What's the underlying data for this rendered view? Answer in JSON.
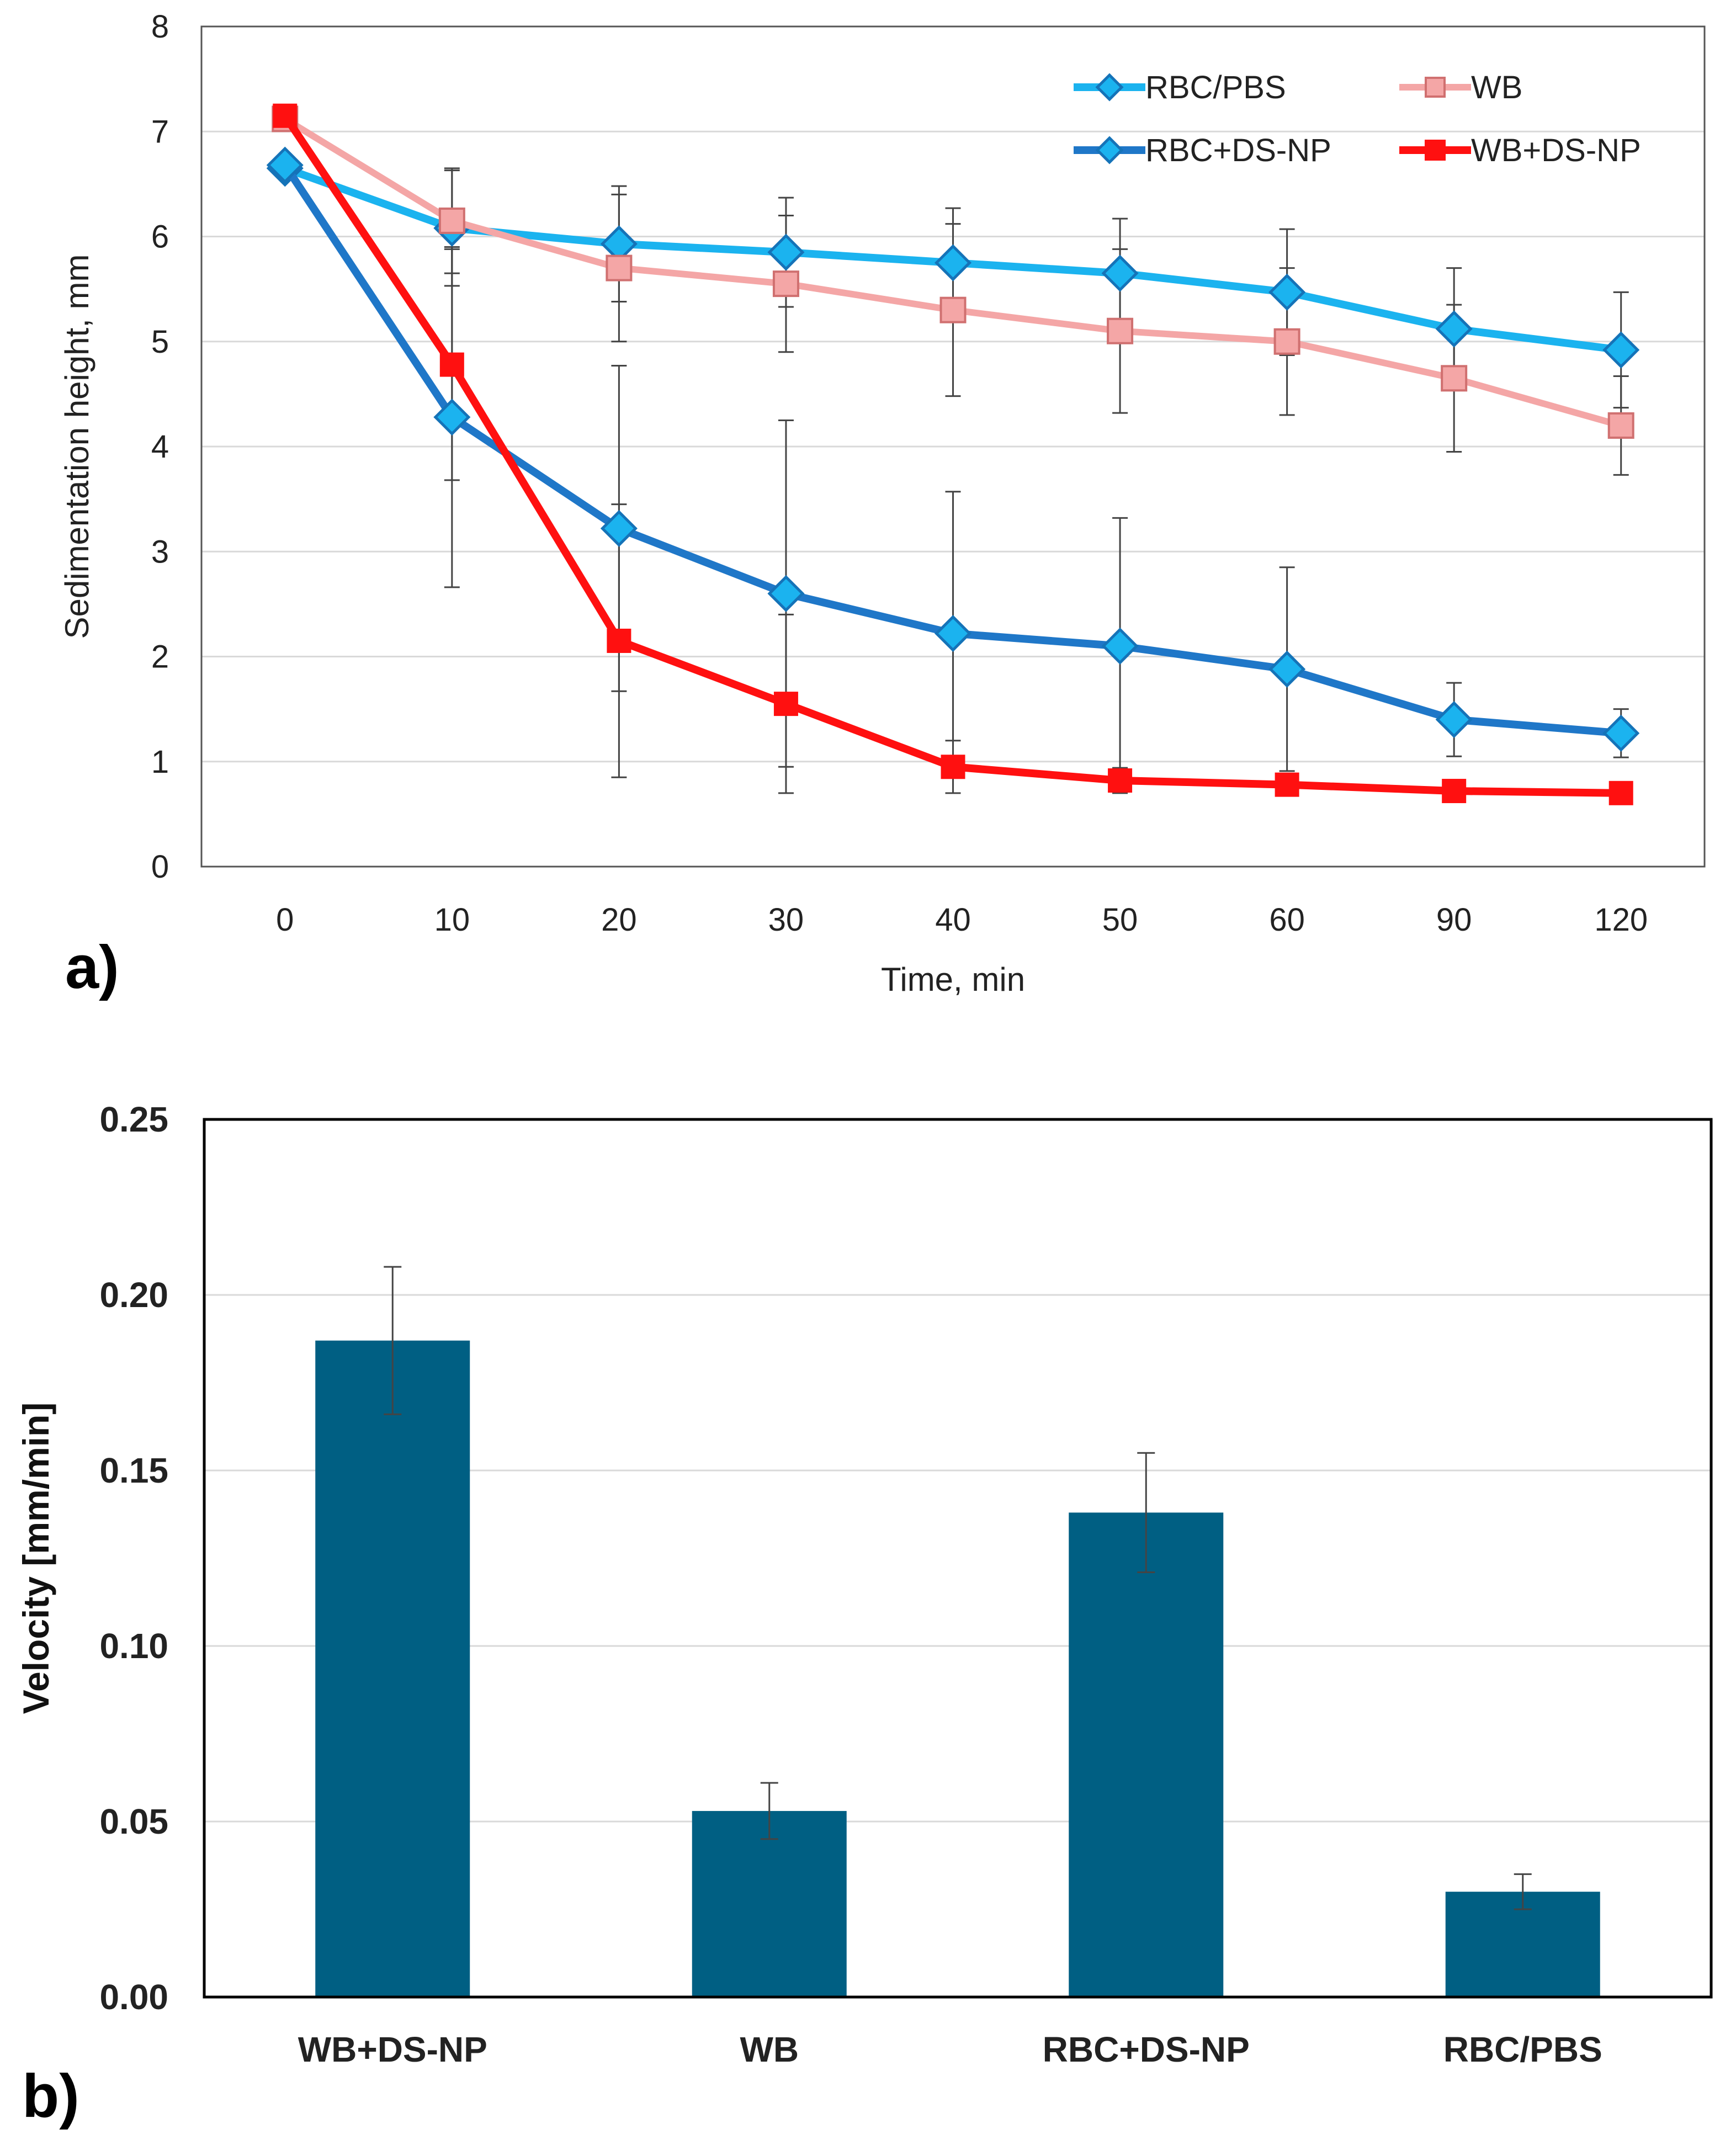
{
  "panel_labels": {
    "a": "a)",
    "b": "b)"
  },
  "colors": {
    "rbc_pbs": "#1bb3ef",
    "rbc_pbs_marker_edge": "#1573b8",
    "wb": "#f4a6a6",
    "wb_marker_edge": "#d07070",
    "rbc_ds_np": "#1f77c8",
    "rbc_ds_np_marker_fill": "#1bb3ef",
    "wb_ds_np": "#ff1010",
    "bar": "#005f83",
    "grid": "#d9d9d9",
    "error_bar": "#444444"
  },
  "chart_data": [
    {
      "type": "line",
      "title": "",
      "xlabel": "Time, min",
      "ylabel": "Sedimentation height, mm",
      "categories": [
        "0",
        "10",
        "20",
        "30",
        "40",
        "50",
        "60",
        "90",
        "120"
      ],
      "ylim": [
        0,
        8
      ],
      "yticks": [
        0,
        1,
        2,
        3,
        4,
        5,
        6,
        7,
        8
      ],
      "grid": "horizontal",
      "legend_position": "top-right",
      "series": [
        {
          "name": "RBC/PBS",
          "marker": "diamond",
          "values": [
            6.65,
            6.08,
            5.93,
            5.85,
            5.75,
            5.65,
            5.47,
            5.12,
            4.92
          ],
          "errors": [
            0.05,
            0.55,
            0.55,
            0.52,
            0.52,
            0.52,
            0.6,
            0.58,
            0.55
          ]
        },
        {
          "name": "WB",
          "marker": "square",
          "values": [
            7.12,
            6.15,
            5.7,
            5.55,
            5.3,
            5.1,
            5.0,
            4.65,
            4.2
          ],
          "errors": [
            0.05,
            0.5,
            0.7,
            0.65,
            0.82,
            0.78,
            0.7,
            0.7,
            0.47
          ]
        },
        {
          "name": "RBC+DS-NP",
          "marker": "diamond",
          "values": [
            6.68,
            4.28,
            3.22,
            2.6,
            2.22,
            2.1,
            1.88,
            1.4,
            1.27
          ],
          "errors": [
            0.05,
            1.62,
            1.55,
            1.65,
            1.35,
            1.22,
            0.97,
            0.35,
            0.23
          ]
        },
        {
          "name": "WB+DS-NP",
          "marker": "square",
          "values": [
            7.15,
            4.78,
            2.15,
            1.55,
            0.95,
            0.82,
            0.78,
            0.72,
            0.7
          ],
          "errors": [
            0.05,
            1.1,
            1.3,
            0.85,
            0.25,
            0.12,
            0.08,
            0.05,
            0.05
          ]
        }
      ]
    },
    {
      "type": "bar",
      "title": "",
      "xlabel": "",
      "ylabel": "Velocity [mm/min]",
      "categories": [
        "WB+DS-NP",
        "WB",
        "RBC+DS-NP",
        "RBC/PBS"
      ],
      "values": [
        0.187,
        0.053,
        0.138,
        0.03
      ],
      "errors": [
        0.021,
        0.008,
        0.017,
        0.005
      ],
      "ylim": [
        0,
        0.25
      ],
      "yticks": [
        "0.00",
        "0.05",
        "0.10",
        "0.15",
        "0.20",
        "0.25"
      ],
      "grid": "horizontal"
    }
  ]
}
